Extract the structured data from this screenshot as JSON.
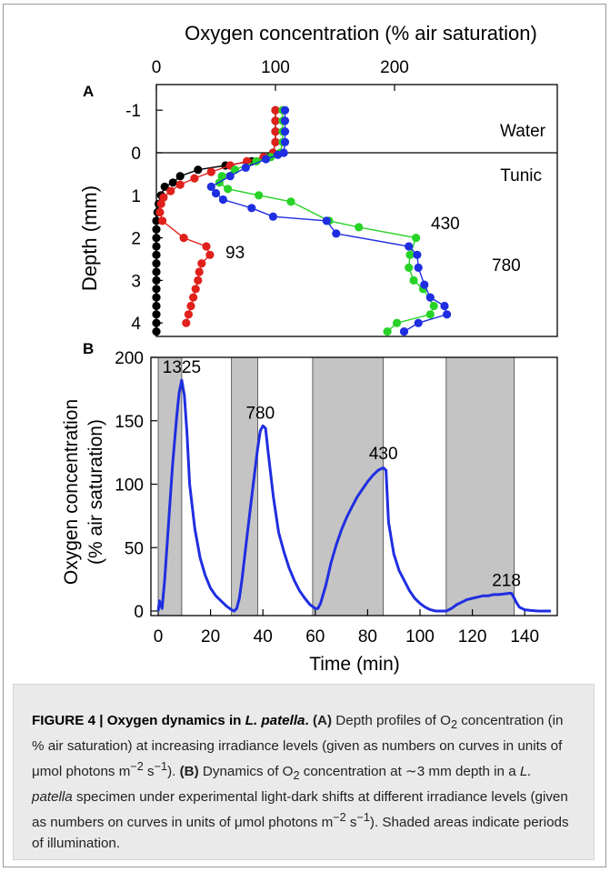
{
  "chart_data": [
    {
      "panel": "A",
      "type": "line",
      "xlabel_top": "Oxygen concentration (% air saturation)",
      "ylabel": "Depth (mm)",
      "x_ticks": [
        "0",
        "100",
        "200"
      ],
      "y_ticks": [
        "-1",
        "0",
        "1",
        "2",
        "3",
        "4"
      ],
      "xlim": [
        0,
        260
      ],
      "ylim_inverted": [
        -1.5,
        4.2
      ],
      "region_labels": [
        "Water",
        "Tunic"
      ],
      "surface_depth": 0,
      "series": [
        {
          "label": "",
          "color": "#000000",
          "points": [
            [
              100,
              -1
            ],
            [
              100,
              -0.75
            ],
            [
              100,
              -0.5
            ],
            [
              100,
              -0.25
            ],
            [
              98,
              0
            ],
            [
              95,
              0.1
            ],
            [
              80,
              0.2
            ],
            [
              58,
              0.3
            ],
            [
              35,
              0.4
            ],
            [
              20,
              0.55
            ],
            [
              14,
              0.7
            ],
            [
              7,
              0.8
            ],
            [
              4,
              1.0
            ],
            [
              2,
              1.2
            ],
            [
              1,
              1.4
            ],
            [
              0,
              1.6
            ],
            [
              0,
              1.8
            ],
            [
              0,
              2.0
            ],
            [
              0,
              2.2
            ],
            [
              0,
              2.4
            ],
            [
              0,
              2.6
            ],
            [
              0,
              2.8
            ],
            [
              0,
              3.0
            ],
            [
              0,
              3.2
            ],
            [
              0,
              3.4
            ],
            [
              0,
              3.6
            ],
            [
              0,
              3.8
            ],
            [
              0,
              4.0
            ],
            [
              0,
              4.2
            ]
          ]
        },
        {
          "label": "93",
          "color": "#e0201b",
          "points": [
            [
              100,
              -1
            ],
            [
              100,
              -0.75
            ],
            [
              100,
              -0.5
            ],
            [
              100,
              -0.25
            ],
            [
              98,
              0
            ],
            [
              90,
              0.1
            ],
            [
              76,
              0.2
            ],
            [
              62,
              0.3
            ],
            [
              46,
              0.45
            ],
            [
              32,
              0.6
            ],
            [
              20,
              0.75
            ],
            [
              12,
              0.9
            ],
            [
              6,
              1.05
            ],
            [
              4,
              1.2
            ],
            [
              3,
              1.4
            ],
            [
              5,
              1.6
            ],
            [
              23,
              2.0
            ],
            [
              42,
              2.2
            ],
            [
              45,
              2.4
            ],
            [
              38,
              2.6
            ],
            [
              36,
              2.8
            ],
            [
              35,
              3.0
            ],
            [
              33,
              3.2
            ],
            [
              31,
              3.4
            ],
            [
              29,
              3.6
            ],
            [
              27,
              3.8
            ],
            [
              25,
              4.0
            ]
          ]
        },
        {
          "label": "430",
          "color": "#27d327",
          "points": [
            [
              106,
              -1
            ],
            [
              106,
              -0.75
            ],
            [
              106,
              -0.5
            ],
            [
              106,
              -0.25
            ],
            [
              104,
              0
            ],
            [
              96,
              0.1
            ],
            [
              84,
              0.2
            ],
            [
              66,
              0.4
            ],
            [
              55,
              0.55
            ],
            [
              53,
              0.7
            ],
            [
              60,
              0.85
            ],
            [
              86,
              1.0
            ],
            [
              113,
              1.15
            ],
            [
              145,
              1.6
            ],
            [
              170,
              1.75
            ],
            [
              218,
              2.0
            ],
            [
              213,
              2.4
            ],
            [
              212,
              2.7
            ],
            [
              216,
              3.0
            ],
            [
              224,
              3.2
            ],
            [
              233,
              3.6
            ],
            [
              230,
              3.8
            ],
            [
              202,
              4.0
            ],
            [
              194,
              4.2
            ]
          ]
        },
        {
          "label": "780",
          "color": "#1f2ee0",
          "points": [
            [
              108,
              -1
            ],
            [
              108,
              -0.75
            ],
            [
              108,
              -0.5
            ],
            [
              108,
              -0.25
            ],
            [
              107,
              0
            ],
            [
              102,
              0.05
            ],
            [
              92,
              0.15
            ],
            [
              75,
              0.35
            ],
            [
              62,
              0.55
            ],
            [
              46,
              0.8
            ],
            [
              50,
              0.95
            ],
            [
              56,
              1.1
            ],
            [
              80,
              1.3
            ],
            [
              98,
              1.5
            ],
            [
              143,
              1.6
            ],
            [
              151,
              1.9
            ],
            [
              212,
              2.2
            ],
            [
              219,
              2.4
            ],
            [
              220,
              2.7
            ],
            [
              225,
              3.1
            ],
            [
              230,
              3.4
            ],
            [
              242,
              3.6
            ],
            [
              244,
              3.8
            ],
            [
              220,
              4.0
            ],
            [
              208,
              4.2
            ]
          ]
        }
      ]
    },
    {
      "panel": "B",
      "type": "line",
      "xlabel": "Time (min)",
      "ylabel_lines": [
        "Oxygen concentration",
        "(% air saturation)"
      ],
      "x_ticks": [
        "0",
        "20",
        "40",
        "60",
        "80",
        "100",
        "120",
        "140"
      ],
      "y_ticks": [
        "0",
        "50",
        "100",
        "150",
        "200"
      ],
      "xlim": [
        -2,
        150
      ],
      "ylim": [
        0,
        200
      ],
      "illumination_periods": [
        [
          0,
          9
        ],
        [
          28,
          38
        ],
        [
          59,
          86
        ],
        [
          110,
          136
        ]
      ],
      "peak_labels": [
        {
          "text": "1325",
          "x": 9,
          "y": 182
        },
        {
          "text": "780",
          "x": 39,
          "y": 146
        },
        {
          "text": "430",
          "x": 86,
          "y": 114
        },
        {
          "text": "218",
          "x": 133,
          "y": 14
        }
      ],
      "series": [
        {
          "name": "",
          "color": "#1f2ee0",
          "points": [
            [
              0,
              0
            ],
            [
              0.5,
              8
            ],
            [
              1.5,
              2
            ],
            [
              2.5,
              25
            ],
            [
              4,
              70
            ],
            [
              5.5,
              115
            ],
            [
              7,
              152
            ],
            [
              8,
              172
            ],
            [
              9,
              182
            ],
            [
              10,
              170
            ],
            [
              11,
              140
            ],
            [
              12,
              100
            ],
            [
              14,
              65
            ],
            [
              16,
              42
            ],
            [
              18,
              28
            ],
            [
              20,
              18
            ],
            [
              22,
              12
            ],
            [
              24,
              8
            ],
            [
              26,
              4
            ],
            [
              28,
              1
            ],
            [
              29,
              0
            ],
            [
              30,
              2
            ],
            [
              31,
              10
            ],
            [
              32,
              25
            ],
            [
              34,
              60
            ],
            [
              36,
              95
            ],
            [
              38,
              128
            ],
            [
              39,
              142
            ],
            [
              40,
              146
            ],
            [
              41,
              144
            ],
            [
              42,
              125
            ],
            [
              44,
              90
            ],
            [
              46,
              62
            ],
            [
              48,
              47
            ],
            [
              50,
              34
            ],
            [
              52,
              24
            ],
            [
              54,
              16
            ],
            [
              56,
              10
            ],
            [
              58,
              5
            ],
            [
              60,
              2
            ],
            [
              61,
              2
            ],
            [
              62,
              6
            ],
            [
              64,
              20
            ],
            [
              66,
              38
            ],
            [
              68,
              52
            ],
            [
              70,
              64
            ],
            [
              72,
              74
            ],
            [
              74,
              82
            ],
            [
              76,
              90
            ],
            [
              78,
              96
            ],
            [
              80,
              102
            ],
            [
              82,
              107
            ],
            [
              84,
              111
            ],
            [
              86,
              113
            ],
            [
              87,
              111
            ],
            [
              88,
              70
            ],
            [
              90,
              45
            ],
            [
              92,
              32
            ],
            [
              94,
              24
            ],
            [
              96,
              16
            ],
            [
              98,
              10
            ],
            [
              100,
              6
            ],
            [
              102,
              3
            ],
            [
              104,
              1
            ],
            [
              106,
              0
            ],
            [
              108,
              0
            ],
            [
              110,
              0
            ],
            [
              112,
              2
            ],
            [
              114,
              5
            ],
            [
              116,
              7
            ],
            [
              118,
              9
            ],
            [
              120,
              10
            ],
            [
              122,
              11
            ],
            [
              124,
              12
            ],
            [
              126,
              12
            ],
            [
              128,
              13
            ],
            [
              130,
              13
            ],
            [
              132,
              13.5
            ],
            [
              134,
              14
            ],
            [
              135,
              14
            ],
            [
              136,
              10
            ],
            [
              137,
              6
            ],
            [
              138,
              3
            ],
            [
              140,
              1
            ],
            [
              142,
              0.5
            ],
            [
              145,
              0
            ],
            [
              150,
              0
            ]
          ]
        }
      ]
    }
  ],
  "caption": {
    "figure_label": "FIGURE 4 | Oxygen dynamics in ",
    "figure_species": "L. patella",
    "figure_label_end": ".",
    "part_a_label": "(A)",
    "part_a_text_1": " Depth profiles of O",
    "part_a_sub": "2",
    "part_a_text_2": " concentration (in % air saturation) at increasing irradiance levels (given as numbers on curves in units of μmol photons m",
    "part_a_sup": "−2",
    "part_a_text_3": " s",
    "part_a_sup2": "−1",
    "part_a_text_4": "). ",
    "part_b_label": "(B)",
    "part_b_text_1": " Dynamics of O",
    "part_b_sub": "2",
    "part_b_text_2": " concentration at ∼3 mm depth in a ",
    "part_b_species": "L. patella",
    "part_b_text_3": " specimen under experimental light-dark shifts at different irradiance levels (given as numbers on curves in units of μmol photons m",
    "part_b_sup": "−2",
    "part_b_text_4": " s",
    "part_b_sup2": "−1",
    "part_b_text_5": "). Shaded areas indicate periods of illumination."
  }
}
